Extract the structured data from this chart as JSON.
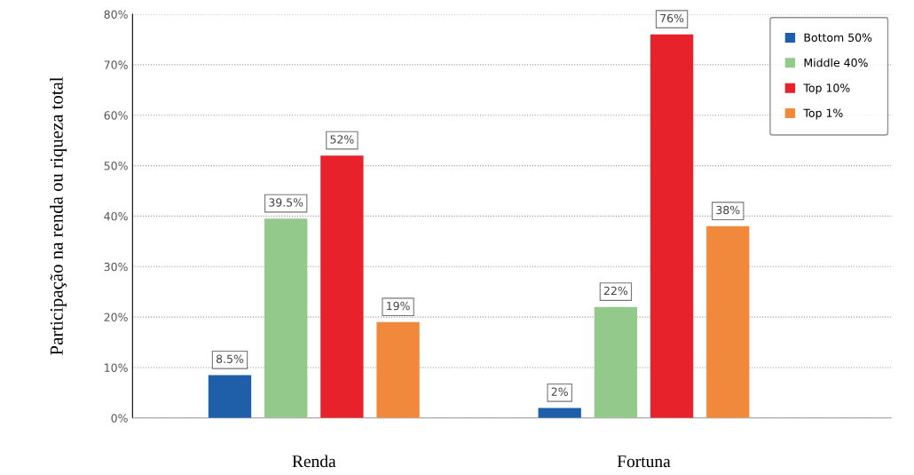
{
  "chart_data": {
    "type": "bar",
    "ylabel": "Participação na renda ou riqueza total",
    "categories": [
      "Renda",
      "Fortuna"
    ],
    "series": [
      {
        "name": "Bottom 50%",
        "color": "#1f5ea8",
        "values": [
          8.5,
          2
        ],
        "value_labels": [
          "8.5%",
          "2%"
        ]
      },
      {
        "name": "Middle 40%",
        "color": "#93c98a",
        "values": [
          39.5,
          22
        ],
        "value_labels": [
          "39.5%",
          "22%"
        ]
      },
      {
        "name": "Top 10%",
        "color": "#e8222a",
        "values": [
          52,
          76
        ],
        "value_labels": [
          "52%",
          "76%"
        ]
      },
      {
        "name": "Top 1%",
        "color": "#f0893c",
        "values": [
          19,
          38
        ],
        "value_labels": [
          "19%",
          "38%"
        ]
      }
    ],
    "ylim": [
      0,
      80
    ],
    "yticks": [
      {
        "value": 0,
        "label": "0%"
      },
      {
        "value": 10,
        "label": "10%"
      },
      {
        "value": 20,
        "label": "20%"
      },
      {
        "value": 30,
        "label": "30%"
      },
      {
        "value": 40,
        "label": "40%"
      },
      {
        "value": 50,
        "label": "50%"
      },
      {
        "value": 60,
        "label": "60%"
      },
      {
        "value": 70,
        "label": "70%"
      },
      {
        "value": 80,
        "label": "80%"
      }
    ],
    "grid": "y",
    "legend": "top right"
  }
}
